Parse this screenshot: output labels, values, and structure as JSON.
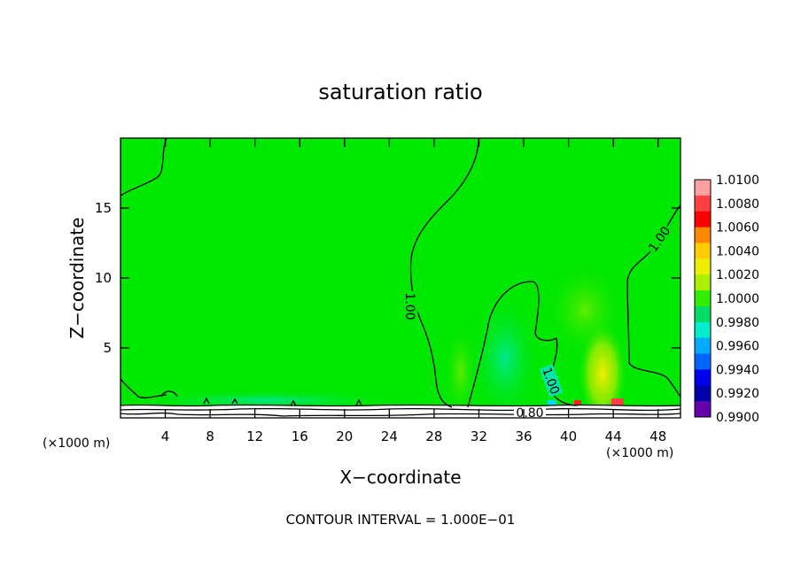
{
  "chart_data": {
    "type": "heatmap",
    "title": "saturation ratio",
    "xlabel": "X−coordinate",
    "ylabel": "Z−coordinate",
    "x_unit_left": "(×1000 m)",
    "x_unit_right": "(×1000 m)",
    "xlim": [
      0,
      50
    ],
    "ylim": [
      0,
      20
    ],
    "x_ticks": [
      4,
      8,
      12,
      16,
      20,
      24,
      28,
      32,
      36,
      40,
      44,
      48
    ],
    "y_ticks": [
      5,
      10,
      15
    ],
    "footer": "CONTOUR INTERVAL = 1.000E−01",
    "colorbar": {
      "levels": [
        "1.0100",
        "1.0080",
        "1.0060",
        "1.0040",
        "1.0020",
        "1.0000",
        "0.9980",
        "0.9960",
        "0.9940",
        "0.9920",
        "0.9900"
      ],
      "colors": [
        "#ffa0a0",
        "#ff4040",
        "#ff0000",
        "#ff8800",
        "#ffcc00",
        "#eeee00",
        "#aaee00",
        "#33ee00",
        "#00dd66",
        "#00eecc",
        "#00aaff",
        "#0066ff",
        "#0000ee",
        "#0000aa",
        "#6600aa"
      ]
    },
    "contour_labels": [
      {
        "text": "1.00",
        "x": 26.2,
        "z": 8.0,
        "angle": 90
      },
      {
        "text": "1.00",
        "x": 38.4,
        "z": 2.8,
        "angle": 70
      },
      {
        "text": "1.00",
        "x": 47.3,
        "z": 12.8,
        "angle": -55
      },
      {
        "text": "0.80",
        "x": 37.0,
        "z": 0.5,
        "angle": 0
      }
    ],
    "field_value": 1.0
  }
}
